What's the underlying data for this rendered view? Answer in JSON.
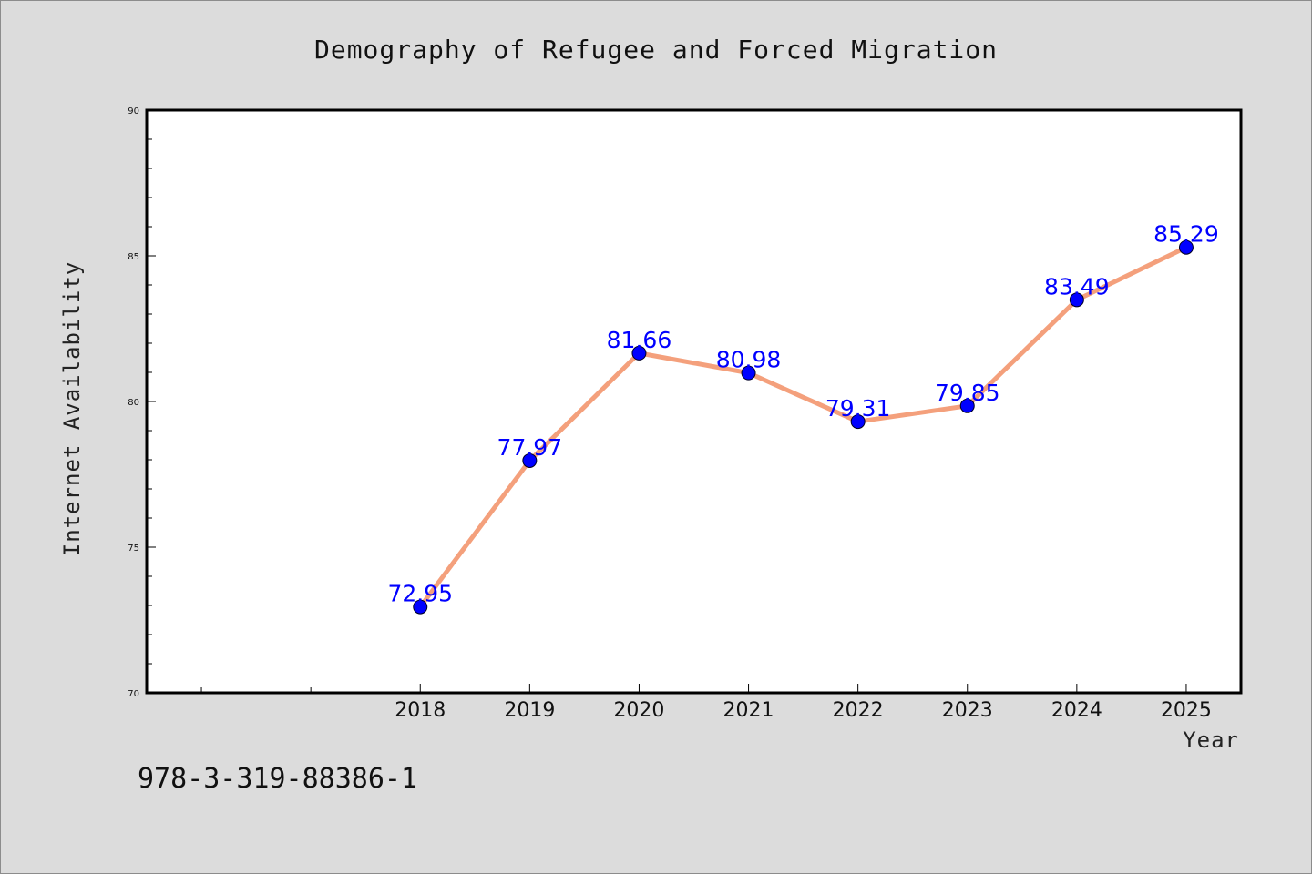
{
  "chart_data": {
    "type": "line",
    "title": "Demography of Refugee and Forced Migration",
    "xlabel": "Year",
    "ylabel": "Internet Availability",
    "x": [
      "2018",
      "2019",
      "2020",
      "2021",
      "2022",
      "2023",
      "2024",
      "2025"
    ],
    "series": [
      {
        "values": [
          72.95,
          77.97,
          81.66,
          80.98,
          79.31,
          79.85,
          83.49,
          85.29
        ],
        "labels": [
          "72.95",
          "77.97",
          "81.66",
          "80.98",
          "79.31",
          "79.85",
          "83.49",
          "85.29"
        ]
      }
    ],
    "ylim": [
      70,
      90
    ],
    "yticks": [
      "70",
      "75",
      "80",
      "85",
      "90"
    ],
    "xlim": [
      2015.5,
      2025.5
    ],
    "grid": false,
    "legend": "none",
    "line_color": "#f4a07c",
    "marker_color": "#0000ff",
    "label_color": "#0000ff"
  },
  "footer": {
    "isbn": "978-3-319-88386-1"
  }
}
